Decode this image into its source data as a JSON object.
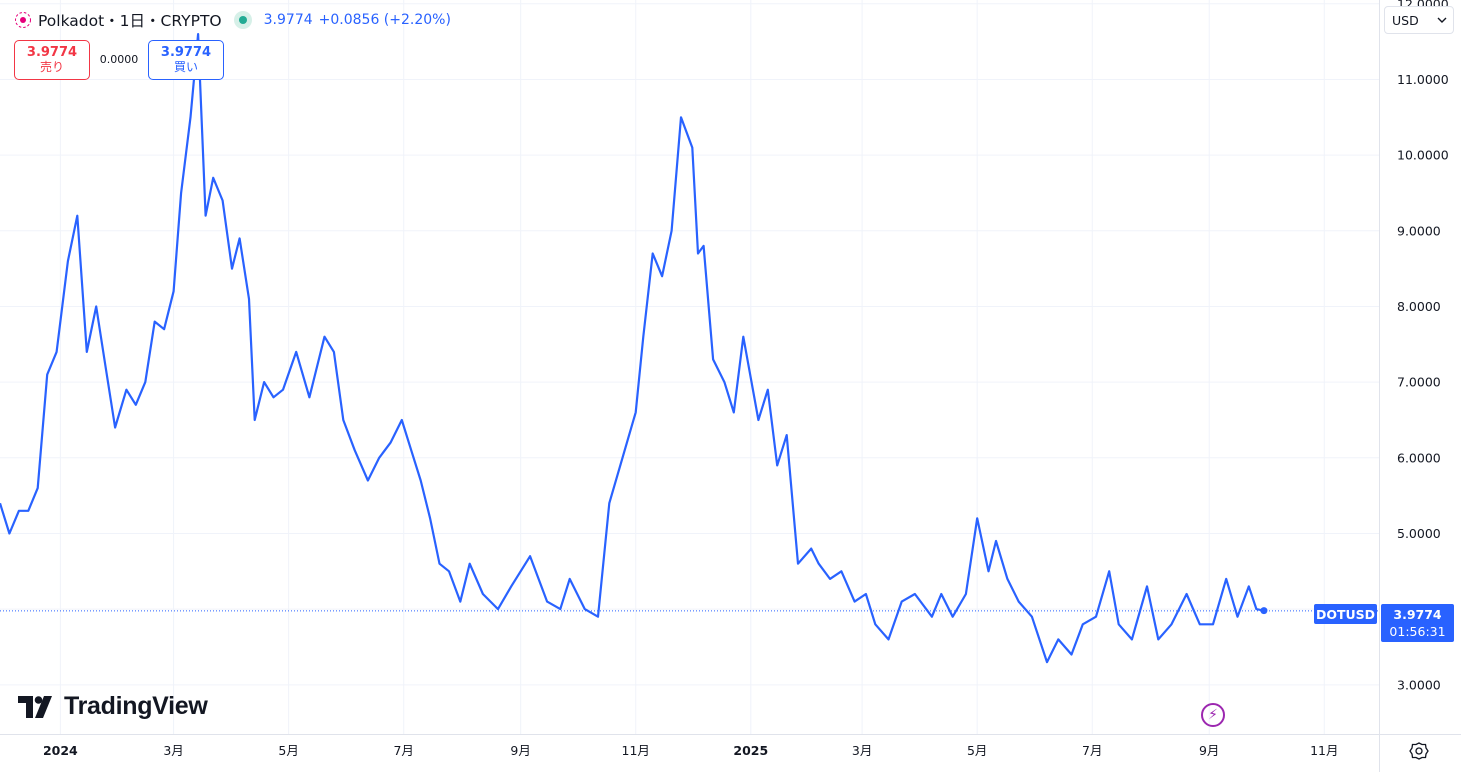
{
  "legend": {
    "symbol": "Polkadot・1日・CRYPTO",
    "last": "3.9774",
    "change": "+0.0856 (+2.20%)"
  },
  "trade": {
    "sell_price": "3.9774",
    "sell_label": "売り",
    "spread": "0.0000",
    "buy_price": "3.9774",
    "buy_label": "買い"
  },
  "currency": {
    "selected": "USD"
  },
  "brand": {
    "name": "TradingView"
  },
  "last_price_label": {
    "ticker": "DOTUSD",
    "price": "3.9774",
    "countdown": "01:56:31"
  },
  "colors": {
    "line": "#2962ff",
    "sell": "#f23645",
    "buy": "#2962ff",
    "grid": "#f0f3fa"
  },
  "icons": {
    "symbol": "polkadot-logo-icon",
    "status": "market-open-dot-icon",
    "currency": "chevron-down-icon",
    "replay": "lightning-icon",
    "settings": "gear-icon"
  },
  "chart_data": {
    "type": "line",
    "series": [
      {
        "name": "DOTUSD",
        "x": [
          "2023-11-30",
          "2023-12-05",
          "2023-12-10",
          "2023-12-15",
          "2023-12-20",
          "2023-12-25",
          "2023-12-30",
          "2024-01-05",
          "2024-01-10",
          "2024-01-15",
          "2024-01-20",
          "2024-01-25",
          "2024-01-30",
          "2024-02-05",
          "2024-02-10",
          "2024-02-15",
          "2024-02-20",
          "2024-02-25",
          "2024-03-01",
          "2024-03-05",
          "2024-03-10",
          "2024-03-14",
          "2024-03-18",
          "2024-03-22",
          "2024-03-27",
          "2024-04-01",
          "2024-04-05",
          "2024-04-10",
          "2024-04-13",
          "2024-04-18",
          "2024-04-23",
          "2024-04-28",
          "2024-05-05",
          "2024-05-12",
          "2024-05-20",
          "2024-05-25",
          "2024-05-30",
          "2024-06-05",
          "2024-06-12",
          "2024-06-18",
          "2024-06-24",
          "2024-06-30",
          "2024-07-05",
          "2024-07-10",
          "2024-07-15",
          "2024-07-20",
          "2024-07-25",
          "2024-07-31",
          "2024-08-05",
          "2024-08-12",
          "2024-08-20",
          "2024-08-27",
          "2024-09-06",
          "2024-09-15",
          "2024-09-22",
          "2024-09-27",
          "2024-10-05",
          "2024-10-12",
          "2024-10-18",
          "2024-10-25",
          "2024-11-01",
          "2024-11-05",
          "2024-11-10",
          "2024-11-15",
          "2024-11-20",
          "2024-11-25",
          "2024-12-01",
          "2024-12-04",
          "2024-12-07",
          "2024-12-12",
          "2024-12-18",
          "2024-12-23",
          "2024-12-28",
          "2025-01-05",
          "2025-01-10",
          "2025-01-15",
          "2025-01-20",
          "2025-01-26",
          "2025-02-02",
          "2025-02-06",
          "2025-02-12",
          "2025-02-18",
          "2025-02-25",
          "2025-03-03",
          "2025-03-08",
          "2025-03-15",
          "2025-03-22",
          "2025-03-29",
          "2025-04-07",
          "2025-04-12",
          "2025-04-18",
          "2025-04-25",
          "2025-05-01",
          "2025-05-07",
          "2025-05-11",
          "2025-05-17",
          "2025-05-23",
          "2025-05-30",
          "2025-06-07",
          "2025-06-13",
          "2025-06-20",
          "2025-06-26",
          "2025-07-03",
          "2025-07-10",
          "2025-07-15",
          "2025-07-22",
          "2025-07-30",
          "2025-08-05",
          "2025-08-12",
          "2025-08-20",
          "2025-08-27",
          "2025-09-03",
          "2025-09-10",
          "2025-09-16",
          "2025-09-22",
          "2025-09-26",
          "2025-09-30"
        ],
        "y": [
          5.4,
          5.0,
          5.3,
          5.3,
          5.6,
          7.1,
          7.4,
          8.6,
          9.2,
          7.4,
          8.0,
          7.2,
          6.4,
          6.9,
          6.7,
          7.0,
          7.8,
          7.7,
          8.2,
          9.5,
          10.5,
          11.6,
          9.2,
          9.7,
          9.4,
          8.5,
          8.9,
          8.1,
          6.5,
          7.0,
          6.8,
          6.9,
          7.4,
          6.8,
          7.6,
          7.4,
          6.5,
          6.1,
          5.7,
          6.0,
          6.2,
          6.5,
          6.1,
          5.7,
          5.2,
          4.6,
          4.5,
          4.1,
          4.6,
          4.2,
          4.0,
          4.3,
          4.7,
          4.1,
          4.0,
          4.4,
          4.0,
          3.9,
          5.4,
          6.0,
          6.6,
          7.6,
          8.7,
          8.4,
          9.0,
          10.5,
          10.1,
          8.7,
          8.8,
          7.3,
          7.0,
          6.6,
          7.6,
          6.5,
          6.9,
          5.9,
          6.3,
          4.6,
          4.8,
          4.6,
          4.4,
          4.5,
          4.1,
          4.2,
          3.8,
          3.6,
          4.1,
          4.2,
          3.9,
          4.2,
          3.9,
          4.2,
          5.2,
          4.5,
          4.9,
          4.4,
          4.1,
          3.9,
          3.3,
          3.6,
          3.4,
          3.8,
          3.9,
          4.5,
          3.8,
          3.6,
          4.3,
          3.6,
          3.8,
          4.2,
          3.8,
          3.8,
          4.4,
          3.9,
          4.3,
          4.0,
          3.98
        ]
      }
    ],
    "xticks": [
      "2024",
      "3月",
      "5月",
      "7月",
      "9月",
      "11月",
      "2025",
      "3月",
      "5月",
      "7月",
      "9月",
      "11月"
    ],
    "yticks": [
      "3.0000",
      "4.0000",
      "5.0000",
      "6.0000",
      "7.0000",
      "8.0000",
      "9.0000",
      "10.0000",
      "11.0000",
      "12.0000"
    ],
    "ylim": [
      2.35,
      12.05
    ],
    "xlim": [
      "2023-11-30",
      "2025-11-30"
    ],
    "last_value": 3.9774,
    "grid": true,
    "title": "",
    "xlabel": "",
    "ylabel": ""
  }
}
